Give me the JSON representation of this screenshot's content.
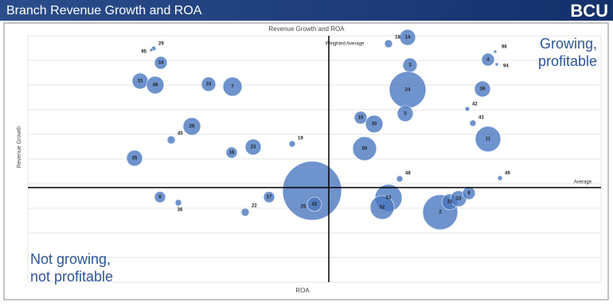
{
  "header": {
    "title": "Branch Revenue Growth and ROA",
    "logo": "BCU"
  },
  "chart_data": {
    "type": "bubble",
    "title": "Revenue Growth and ROA",
    "x_label": "ROA",
    "y_label": "Revenue Growth",
    "color": "#4a78c0",
    "xlim": [
      0,
      72
    ],
    "ylim": [
      0,
      31
    ],
    "x_reference": {
      "value": 37.8,
      "label": "Weighted Average"
    },
    "y_reference": {
      "value": 11.9,
      "label": "Average"
    },
    "quadrant_labels": {
      "top_right": [
        "Growing,",
        "profitable"
      ],
      "bottom_left": [
        "Not growing,",
        "not profitable"
      ]
    },
    "point_labels": [
      "29",
      "95",
      "34",
      "15",
      "48",
      "33",
      "7",
      "26",
      "45",
      "16",
      "23",
      "19",
      "35",
      "6",
      "36",
      "22",
      "17",
      "25",
      "42",
      "18",
      "14",
      "3",
      "24",
      "5",
      "10",
      "30",
      "50",
      "4",
      "96",
      "94",
      "39",
      "42",
      "43",
      "11",
      "48",
      "49",
      "53",
      "52",
      "2",
      "31",
      "33",
      "8"
    ],
    "x": [
      15.8,
      15.5,
      16.7,
      14.1,
      16.0,
      22.7,
      25.7,
      20.6,
      18.0,
      25.6,
      28.3,
      33.2,
      13.4,
      16.6,
      18.9,
      27.3,
      30.3,
      35.7,
      36.0,
      45.3,
      47.7,
      48.0,
      47.7,
      47.4,
      41.8,
      43.5,
      42.3,
      57.8,
      58.7,
      58.9,
      57.1,
      55.2,
      55.9,
      57.8,
      46.7,
      59.3,
      45.3,
      44.5,
      51.8,
      53.0,
      54.1,
      55.4
    ],
    "y": [
      29.4,
      29.2,
      27.6,
      25.3,
      24.8,
      24.9,
      24.6,
      19.6,
      17.9,
      16.3,
      17.0,
      17.4,
      15.6,
      10.7,
      10.0,
      8.8,
      10.7,
      11.5,
      9.8,
      30.0,
      30.8,
      27.3,
      24.2,
      21.2,
      20.7,
      19.9,
      16.8,
      28.0,
      29.0,
      27.4,
      24.3,
      21.8,
      20.0,
      18.0,
      13.0,
      13.1,
      10.6,
      9.4,
      8.8,
      10.1,
      10.5,
      11.2
    ],
    "sizes": [
      3,
      2,
      8,
      10,
      11,
      9,
      12,
      11,
      5,
      7,
      10,
      4,
      10,
      7,
      4,
      5,
      7,
      37,
      9,
      5,
      10,
      9,
      23,
      10,
      8,
      11,
      15,
      8,
      2,
      2,
      10,
      3,
      4,
      16,
      4,
      3,
      17,
      15,
      22,
      10,
      10,
      8
    ]
  }
}
